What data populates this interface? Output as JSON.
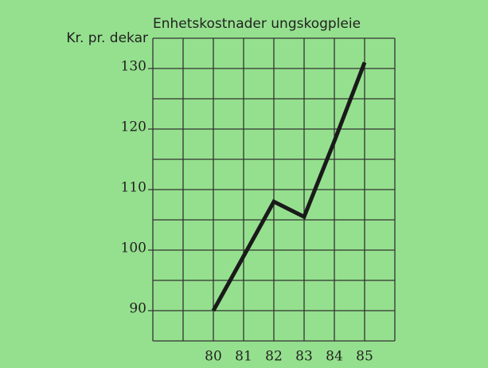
{
  "chart_data": {
    "type": "line",
    "title": "Enhetskostnader ungskogpleie",
    "ylabel": "Kr. pr. dekar",
    "x": [
      80,
      81,
      82,
      83,
      84,
      85
    ],
    "series": [
      {
        "name": "Enhetskostnader",
        "color": "#1a1a1a",
        "values": [
          90,
          99,
          108,
          105.5,
          118,
          131
        ]
      }
    ],
    "xlim": [
      78,
      86
    ],
    "xticks": [
      80,
      81,
      82,
      83,
      84,
      85
    ],
    "xminor": [
      78,
      79,
      86
    ],
    "ylim": [
      85,
      135
    ],
    "yticks": [
      90,
      100,
      110,
      120,
      130
    ],
    "yminor": [
      85,
      95,
      105,
      115,
      125,
      135
    ],
    "grid": true,
    "background": "#95e08e"
  }
}
